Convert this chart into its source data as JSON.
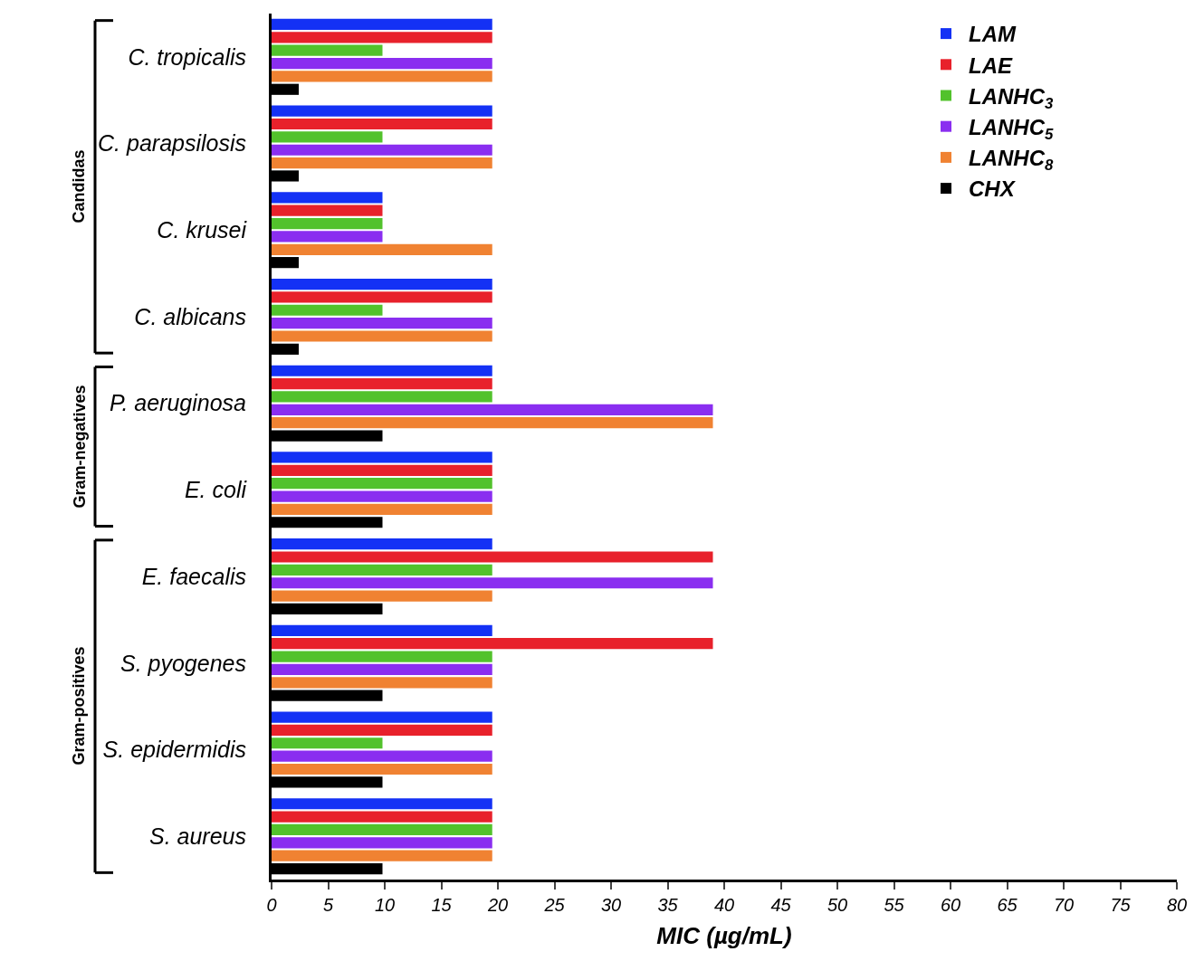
{
  "chart_data": {
    "type": "bar",
    "orientation": "horizontal",
    "xlabel": "MIC (µg/mL)",
    "categories": [
      "C. tropicalis",
      "C. parapsilosis",
      "C. krusei",
      "C. albicans",
      "P. aeruginosa",
      "E. coli",
      "E. faecalis",
      "S. pyogenes",
      "S. epidermidis",
      "S. aureus"
    ],
    "series": [
      {
        "name": "LAM",
        "color": "#1431f5",
        "values": [
          19.5,
          19.5,
          9.8,
          19.5,
          19.5,
          19.5,
          19.5,
          19.5,
          19.5,
          19.5
        ]
      },
      {
        "name": "LAE",
        "color": "#e8212b",
        "values": [
          19.5,
          19.5,
          9.8,
          19.5,
          19.5,
          19.5,
          39,
          39,
          19.5,
          19.5
        ]
      },
      {
        "name": "LANHC$_{3}$",
        "color": "#52c22c",
        "values": [
          9.8,
          9.8,
          9.8,
          9.8,
          19.5,
          19.5,
          19.5,
          19.5,
          9.8,
          19.5
        ]
      },
      {
        "name": "LANHC$_{5}$",
        "color": "#8a2ef0",
        "values": [
          19.5,
          19.5,
          9.8,
          19.5,
          39,
          19.5,
          39,
          19.5,
          19.5,
          19.5
        ]
      },
      {
        "name": "LANHC$_{8}$",
        "color": "#f08232",
        "values": [
          19.5,
          19.5,
          19.5,
          19.5,
          39,
          19.5,
          19.5,
          19.5,
          19.5,
          19.5
        ]
      },
      {
        "name": "CHX",
        "color": "#000000",
        "values": [
          2.4,
          2.4,
          2.4,
          2.4,
          9.8,
          9.8,
          9.8,
          9.8,
          9.8,
          9.8
        ]
      }
    ],
    "xlim": [
      0,
      80
    ],
    "xticks": [
      0,
      5,
      10,
      15,
      20,
      25,
      30,
      35,
      40,
      45,
      50,
      55,
      60,
      65,
      70,
      75,
      80
    ],
    "annotations": [
      "Candidas",
      "Gram-negatives",
      "Gram-positives"
    ],
    "legend": "top right"
  }
}
